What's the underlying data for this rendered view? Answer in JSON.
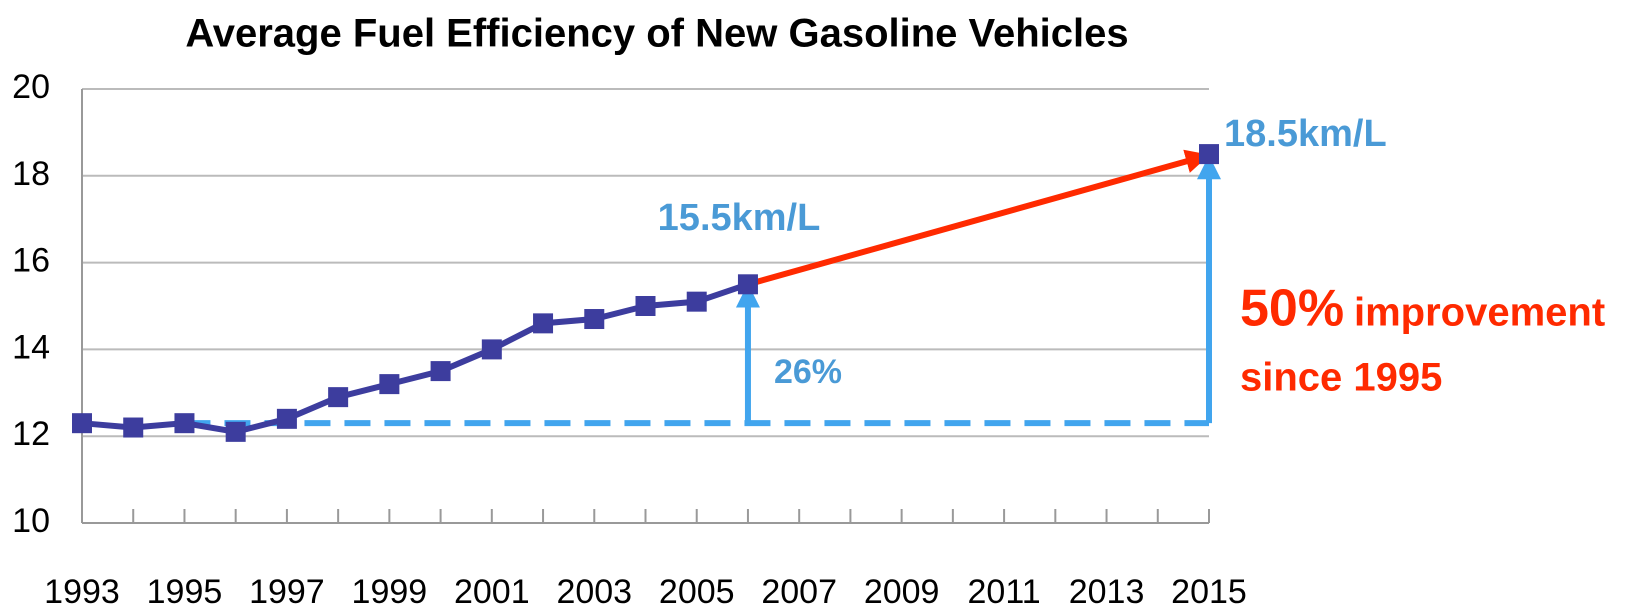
{
  "chart_data": {
    "type": "line",
    "title": "Average Fuel Efficiency of New Gasoline Vehicles",
    "x": [
      1993,
      1994,
      1995,
      1996,
      1997,
      1998,
      1999,
      2000,
      2001,
      2002,
      2003,
      2004,
      2005,
      2006,
      2007,
      2008,
      2009,
      2010,
      2011,
      2012,
      2013,
      2014,
      2015
    ],
    "series": [
      {
        "name": "Average fuel efficiency",
        "color": "#3d3d9e",
        "values": [
          12.3,
          12.2,
          12.3,
          12.1,
          12.4,
          12.9,
          13.2,
          13.5,
          14.0,
          14.6,
          14.7,
          15.0,
          15.1,
          15.5,
          null,
          null,
          null,
          null,
          null,
          null,
          null,
          null,
          18.5
        ]
      }
    ],
    "xlim": [
      1993,
      2015
    ],
    "xticks": [
      1993,
      1995,
      1997,
      1999,
      2001,
      2003,
      2005,
      2007,
      2009,
      2011,
      2013,
      2015
    ],
    "ylim": [
      10,
      20
    ],
    "yticks": [
      10,
      12,
      14,
      16,
      18,
      20
    ],
    "grid": true,
    "annotations": {
      "value_2006": "15.5km/L",
      "value_2015": "18.5km/L",
      "increase_2006": "26%",
      "increase_2015": "50%",
      "improvement": "improvement",
      "since": "since 1995"
    },
    "annotation_color": "#4a9ad6",
    "reference_color": "#41a5ee",
    "trend_color": "#ff2a00"
  }
}
